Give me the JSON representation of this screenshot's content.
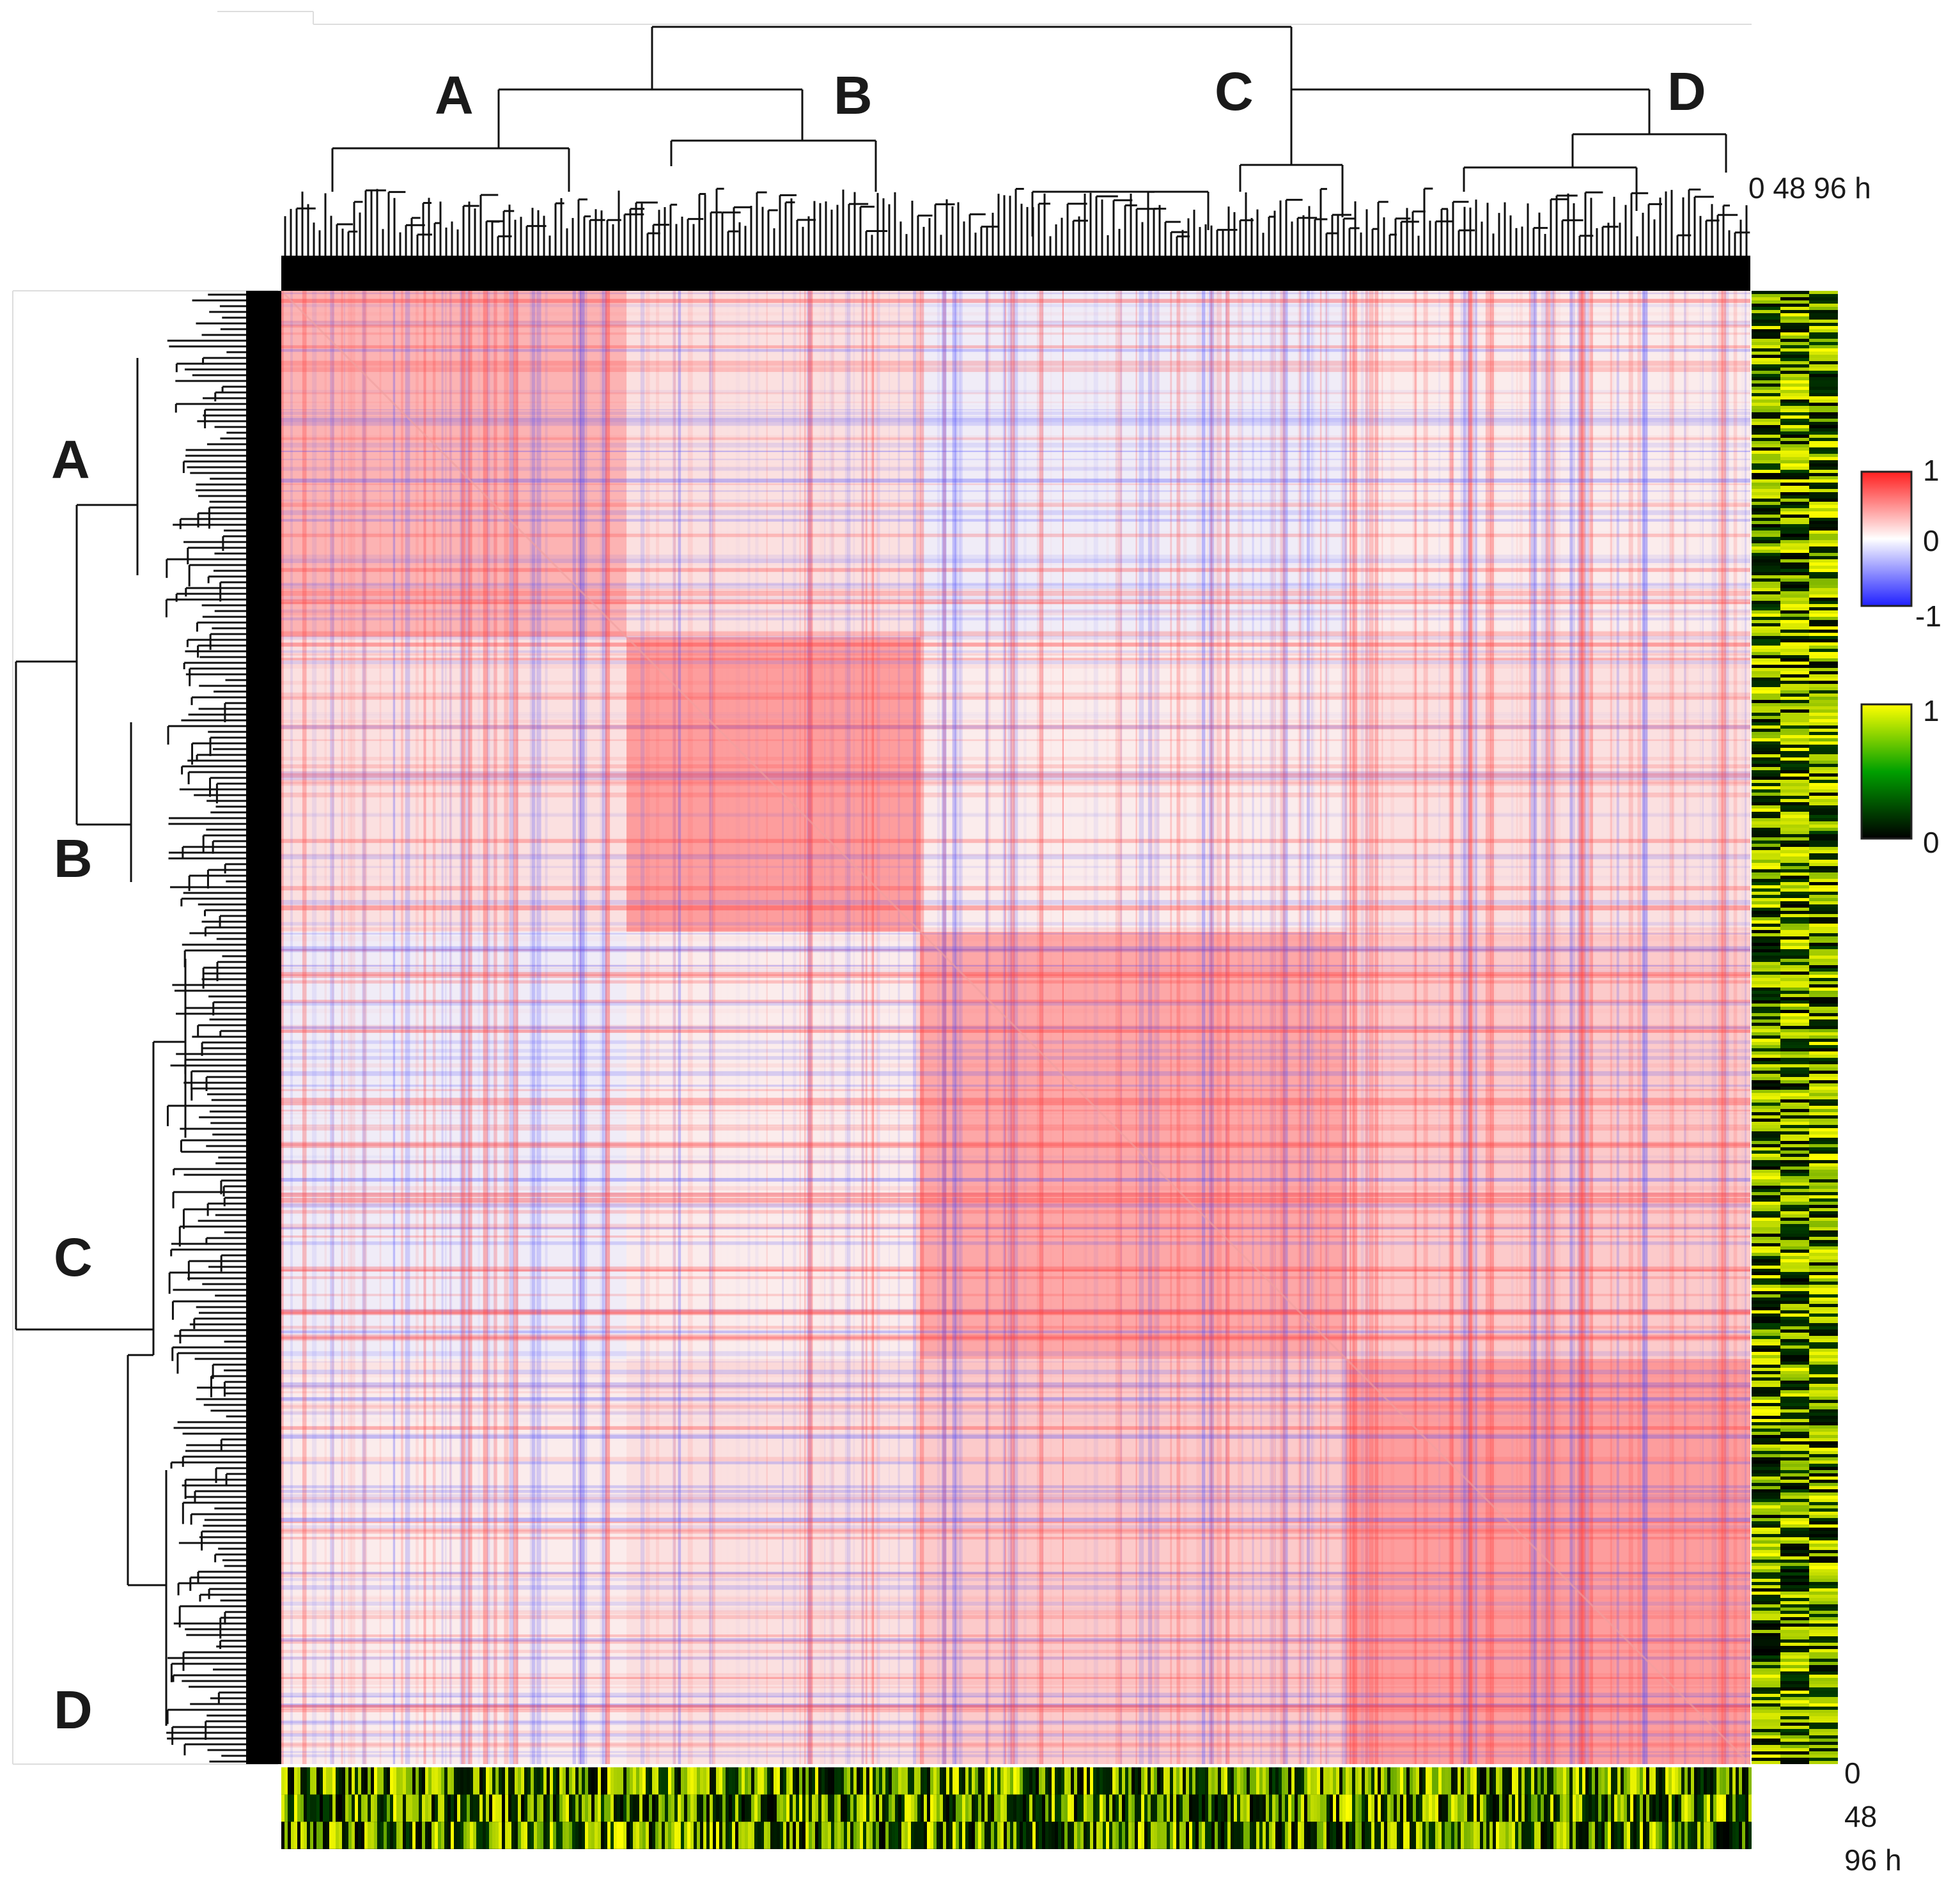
{
  "chart_data": {
    "type": "heatmap",
    "title": "",
    "description_kind": "clustered correlation heatmap with dendrograms and time-course side bars",
    "clusters": [
      "A",
      "B",
      "C",
      "D"
    ],
    "cluster_extent_fraction": {
      "A": [
        0.0,
        0.235
      ],
      "B": [
        0.235,
        0.435
      ],
      "C": [
        0.435,
        0.725
      ],
      "D": [
        0.725,
        1.0
      ]
    },
    "correlation_scale": {
      "min": -1,
      "mid": 0,
      "max": 1,
      "colors": [
        "#1f1fff",
        "#ffffff",
        "#ff1f1f"
      ],
      "labels": [
        "1",
        "0",
        "-1"
      ]
    },
    "expression_scale": {
      "min": 0,
      "max": 1,
      "colors": [
        "#000000",
        "#00a000",
        "#ffff00"
      ],
      "labels": [
        "1",
        "0"
      ]
    },
    "time_points": [
      "0",
      "48",
      "96 h"
    ],
    "time_label_top": "0 48 96 h",
    "block_correlations": [
      [
        0.3,
        0.1,
        -0.05,
        0.05
      ],
      [
        0.1,
        0.4,
        0.05,
        0.1
      ],
      [
        -0.05,
        0.05,
        0.35,
        0.2
      ],
      [
        0.05,
        0.1,
        0.2,
        0.4
      ]
    ]
  }
}
